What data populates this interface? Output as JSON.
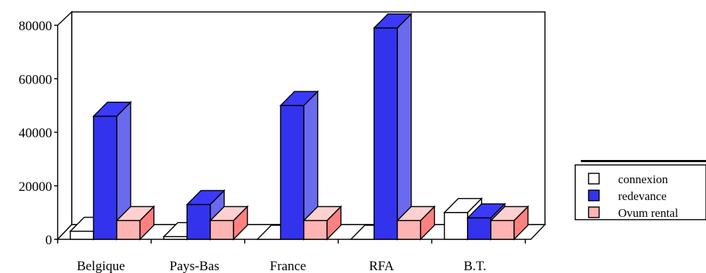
{
  "chart_data": {
    "type": "bar",
    "style": "3d-clustered-column",
    "title": "",
    "xlabel": "",
    "ylabel": "",
    "categories": [
      "Belgique",
      "Pays-Bas",
      "France",
      "RFA",
      "B.T."
    ],
    "series": [
      {
        "name": "connexion",
        "values": [
          3000,
          1000,
          0,
          0,
          10000
        ],
        "color": "#ffffff"
      },
      {
        "name": "redevance",
        "values": [
          46000,
          13000,
          50000,
          79000,
          8000
        ],
        "color": "#3333ee"
      },
      {
        "name": "Ovum rental",
        "values": [
          7000,
          7000,
          7000,
          7000,
          7000
        ],
        "color": "#ffb3b3"
      }
    ],
    "ylim": [
      0,
      80000
    ],
    "yticks": [
      0,
      20000,
      40000,
      60000,
      80000
    ],
    "grid": false,
    "legend_position": "right"
  }
}
